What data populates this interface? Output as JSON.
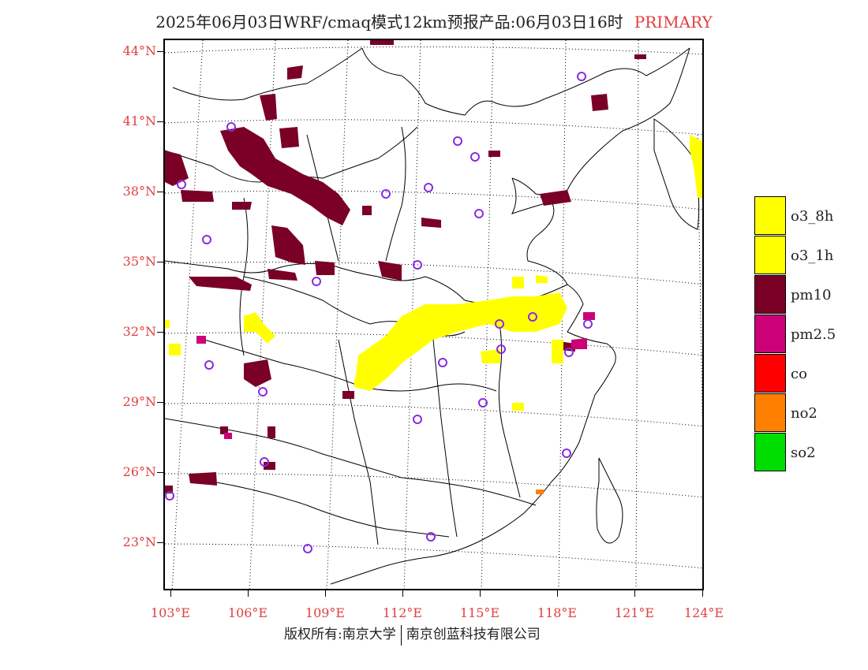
{
  "title": {
    "main": "2025年06月03日WRF/cmaq模式12km预报产品:06月03日16时",
    "tag": "PRIMARY"
  },
  "axes": {
    "lat_labels": [
      "44°N",
      "41°N",
      "38°N",
      "35°N",
      "32°N",
      "29°N",
      "26°N",
      "23°N"
    ],
    "lon_labels": [
      "103°E",
      "106°E",
      "109°E",
      "112°E",
      "115°E",
      "118°E",
      "121°E",
      "124°E"
    ]
  },
  "legend": [
    {
      "label": "o3_8h",
      "color": "#ffff00"
    },
    {
      "label": "o3_1h",
      "color": "#ffff00"
    },
    {
      "label": "pm10",
      "color": "#7a0026"
    },
    {
      "label": "pm2.5",
      "color": "#cc0077"
    },
    {
      "label": "co",
      "color": "#ff0000"
    },
    {
      "label": "no2",
      "color": "#ff7f00"
    },
    {
      "label": "so2",
      "color": "#00dd00"
    }
  ],
  "footer": {
    "left": "版权所有:南京大学",
    "right": "南京创蓝科技有限公司"
  },
  "colors": {
    "pm10": "#7a0026",
    "pm25": "#cc0077",
    "o3": "#ffff00",
    "station": "#8a2be2",
    "label": "#e04040"
  }
}
